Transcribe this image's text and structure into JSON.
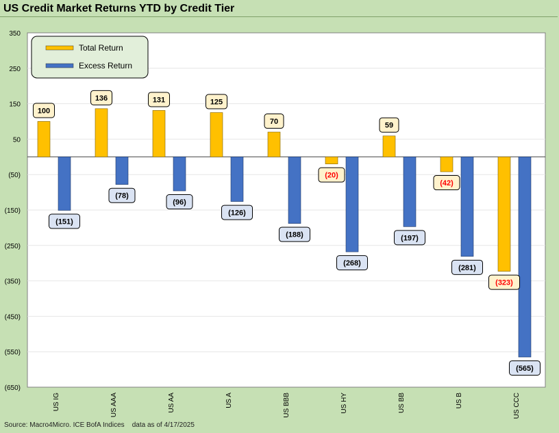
{
  "title": "US Credit Market Returns YTD by Credit Tier",
  "source": "Source: Macro4Micro. ICE BofA Indices    data as of 4/17/2025",
  "chart_data": {
    "type": "bar",
    "categories": [
      "US IG",
      "US AAA",
      "US AA",
      "US A",
      "US BBB",
      "US HY",
      "US BB",
      "US B",
      "US CCC"
    ],
    "series": [
      {
        "name": "Total Return",
        "values": [
          100,
          136,
          131,
          125,
          70,
          -20,
          59,
          -42,
          -323
        ],
        "color": "#ffc000"
      },
      {
        "name": "Excess Return",
        "values": [
          -151,
          -78,
          -96,
          -126,
          -188,
          -268,
          -197,
          -281,
          -565
        ],
        "color": "#4472c4"
      }
    ],
    "data_labels": {
      "Total Return": [
        "100",
        "136",
        "131",
        "125",
        "70",
        "(20)",
        "59",
        "(42)",
        "(323)"
      ],
      "Excess Return": [
        "(151)",
        "(78)",
        "(96)",
        "(126)",
        "(188)",
        "(268)",
        "(197)",
        "(281)",
        "(565)"
      ]
    },
    "yticks": [
      350,
      250,
      150,
      50,
      -50,
      -150,
      -250,
      -350,
      -450,
      -550,
      -650
    ],
    "ytick_labels": [
      "350",
      "250",
      "150",
      "50",
      "(50)",
      "(150)",
      "(250)",
      "(350)",
      "(450)",
      "(550)",
      "(650)"
    ],
    "ylim": [
      -650,
      350
    ],
    "grid": true,
    "legend": "top-left",
    "colors": {
      "total_label_bg": "#fff2cc",
      "excess_label_bg": "#dae3f3",
      "negative_total_text": "#ff0000",
      "legend_bg": "#e2efda"
    }
  }
}
